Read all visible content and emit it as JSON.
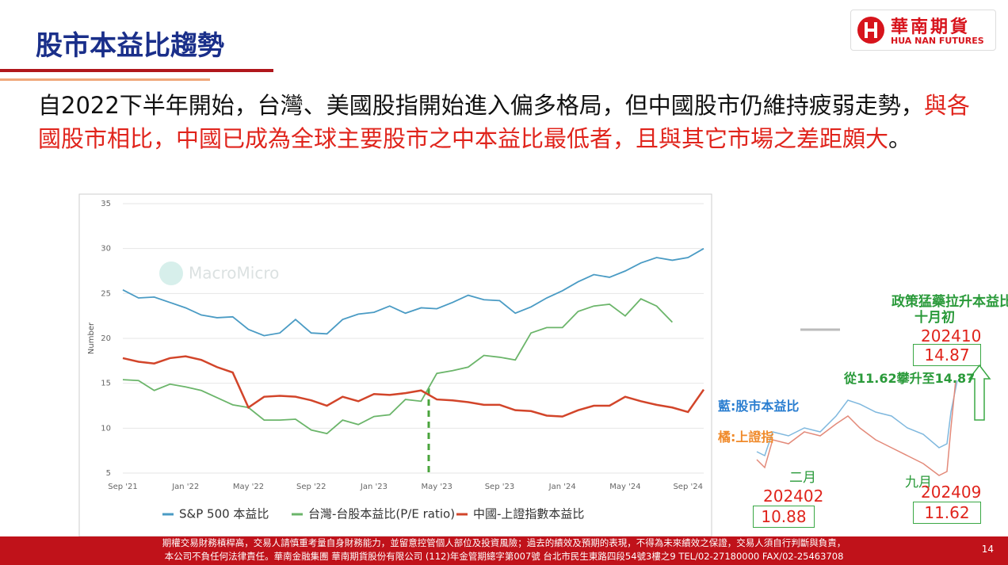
{
  "header": {
    "title": "股市本益比趨勢",
    "logo_name": "華南期貨",
    "logo_sub": "HUA NAN FUTURES"
  },
  "paragraph": {
    "intro": "自2022下半年開始，台灣、美國股指開始進入偏多格局，但中國股市仍維持疲弱走勢，",
    "highlight": "與各國股市相比，中國已成為全球主要股市之中本益比最低者，且與其它市場之差距頗大",
    "end": "。"
  },
  "chart_data": {
    "type": "line",
    "watermark": "MacroMicro",
    "y_label": "Number",
    "categories": [
      "Sep '21",
      null,
      null,
      null,
      "Jan '22",
      null,
      null,
      null,
      "May '22",
      null,
      null,
      null,
      "Sep '22",
      null,
      null,
      null,
      "Jan '23",
      null,
      null,
      null,
      "May '23",
      null,
      null,
      null,
      "Sep '23",
      null,
      null,
      null,
      "Jan '24",
      null,
      null,
      null,
      "May '24",
      null,
      null,
      null,
      "Sep '24",
      null
    ],
    "ylim": [
      5,
      35
    ],
    "yticks": [
      5,
      10,
      15,
      20,
      25,
      30,
      35
    ],
    "series": [
      {
        "name": "S&P 500 本益比",
        "color": "#4a9bc4",
        "values": [
          25.4,
          24.5,
          24.6,
          24.0,
          23.4,
          22.6,
          22.3,
          22.4,
          21.0,
          20.3,
          20.6,
          22.1,
          20.6,
          20.5,
          22.1,
          22.7,
          22.9,
          23.6,
          22.8,
          23.4,
          23.3,
          24.0,
          24.8,
          24.3,
          24.2,
          22.8,
          23.5,
          24.5,
          25.3,
          26.3,
          27.1,
          26.8,
          27.5,
          28.4,
          29.0,
          28.7,
          29.0,
          30.0
        ]
      },
      {
        "name": "台灣-台股本益比(P/E ratio)",
        "color": "#6bb56a",
        "values": [
          15.4,
          15.3,
          14.2,
          14.9,
          14.6,
          14.2,
          13.4,
          12.6,
          12.3,
          10.9,
          10.9,
          11.0,
          9.8,
          9.4,
          10.9,
          10.4,
          11.3,
          11.5,
          13.2,
          13.0,
          16.1,
          16.4,
          16.8,
          18.1,
          17.9,
          17.6,
          20.6,
          21.2,
          21.2,
          23.0,
          23.6,
          23.8,
          22.5,
          24.4,
          23.6,
          21.8,
          null,
          null
        ]
      },
      {
        "name": "中國-上證指數本益比",
        "color": "#d2452a",
        "values": [
          17.8,
          17.4,
          17.2,
          17.8,
          18.0,
          17.6,
          16.8,
          16.2,
          12.3,
          13.5,
          13.6,
          13.5,
          13.1,
          12.5,
          13.5,
          13.0,
          13.8,
          13.7,
          13.9,
          14.2,
          13.2,
          13.1,
          12.9,
          12.6,
          12.6,
          12.0,
          11.9,
          11.4,
          11.3,
          12.0,
          12.5,
          12.5,
          13.5,
          13.0,
          12.6,
          12.3,
          11.8,
          14.3
        ]
      }
    ]
  },
  "inset": {
    "policy": "政策猛藥拉升本益比",
    "early_oct": "十月初",
    "oct_date": "202410",
    "oct_value": "14.87",
    "rise": "從11.62攀升至14.87",
    "blue_note": "藍:股市本益比",
    "orange_note": "橘:上證指",
    "feb": "二月",
    "feb_date": "202402",
    "feb_value": "10.88",
    "sep": "九月",
    "sep_date": "202409",
    "sep_value": "11.62"
  },
  "footer": {
    "line1": "期權交易財務槓桿高，交易人請慎重考量自身財務能力，並留意控管個人部位及投資風險；過去的績效及預期的表現，不得為未來績效之保證，交易人須自行判斷與負責，",
    "line2": "本公司不負任何法律責任。華南金融集團 華南期貨股份有限公司 (112)年金管期總字第007號 台北市民生東路四段54號3樓之9 TEL/02-27180000 FAX/02-25463708",
    "page": "14"
  }
}
